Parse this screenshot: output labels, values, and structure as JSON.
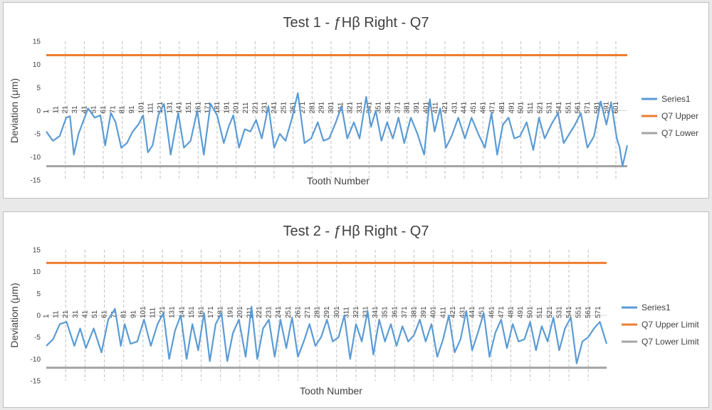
{
  "chart_data": [
    {
      "type": "line",
      "title": "Test 1 - ƒHβ Right - Q7",
      "xlabel": "Tooth Number",
      "ylabel": "Deviation (μm)",
      "ylim": [
        -15,
        15
      ],
      "yticks": [
        15,
        10,
        5,
        0,
        -5,
        -10,
        -15
      ],
      "xlim": [
        1,
        613
      ],
      "xticks": [
        "1",
        "11",
        "21",
        "31",
        "41",
        "51",
        "61",
        "71",
        "81",
        "91",
        "101",
        "111",
        "121",
        "131",
        "141",
        "151",
        "161",
        "171",
        "181",
        "191",
        "201",
        "211",
        "221",
        "231",
        "241",
        "251",
        "261",
        "271",
        "281",
        "291",
        "301",
        "311",
        "321",
        "331",
        "341",
        "351",
        "361",
        "371",
        "381",
        "391",
        "401",
        "411",
        "421",
        "431",
        "441",
        "451",
        "461",
        "471",
        "481",
        "491",
        "501",
        "511",
        "521",
        "531",
        "541",
        "551",
        "561",
        "571",
        "581",
        "591",
        "601"
      ],
      "legend": "right",
      "grid": "vertical dashed every 20 teeth",
      "series": [
        {
          "name": "Series1",
          "color": "#5b9bd5",
          "x": [
            1,
            8,
            15,
            22,
            26,
            30,
            35,
            45,
            52,
            58,
            63,
            69,
            74,
            80,
            86,
            92,
            98,
            103,
            108,
            113,
            119,
            125,
            132,
            140,
            146,
            153,
            160,
            167,
            174,
            181,
            188,
            193,
            198,
            204,
            210,
            216,
            222,
            228,
            235,
            241,
            247,
            253,
            260,
            266,
            273,
            280,
            287,
            293,
            299,
            306,
            312,
            318,
            325,
            331,
            338,
            343,
            348,
            354,
            360,
            366,
            372,
            378,
            385,
            392,
            399,
            405,
            410,
            416,
            422,
            428,
            435,
            442,
            449,
            456,
            463,
            470,
            476,
            482,
            488,
            494,
            500,
            507,
            514,
            520,
            526,
            533,
            540,
            546,
            552,
            558,
            564,
            571,
            578,
            585,
            591,
            596,
            602,
            605,
            608,
            613
          ],
          "values": [
            -4.5,
            -6.5,
            -5.5,
            -1.5,
            -1.2,
            -9.5,
            -5,
            0.5,
            -1.5,
            -1,
            -7.5,
            -0.5,
            -2.5,
            -8,
            -7,
            -4.5,
            -3,
            -1,
            -9,
            -7.5,
            -1,
            1.5,
            -9.5,
            -0.5,
            -8,
            -6.5,
            0,
            -9.5,
            1.5,
            -1,
            -7,
            -3.5,
            -1,
            -8,
            -4,
            -4.5,
            -2,
            -6,
            1,
            -8,
            -5,
            -6.5,
            -1.5,
            3.8,
            -7,
            -6,
            -2.5,
            -6.5,
            -6,
            -2.5,
            1,
            -6,
            -2.5,
            -6,
            3,
            -3.5,
            0,
            -6.5,
            -2.5,
            -6,
            -1.5,
            -7,
            -1.5,
            -5,
            -9.5,
            2.5,
            -4.5,
            0.5,
            -8,
            -5.5,
            -1.5,
            -6,
            -1.5,
            -5,
            -8,
            -0.5,
            -9.5,
            -3,
            -1.5,
            -6,
            -5.5,
            -2.5,
            -8.5,
            -1.5,
            -6,
            -3,
            -0.5,
            -7,
            -5,
            -3,
            -0.5,
            -8,
            -5.5,
            2,
            -3,
            1.8,
            -6,
            -8,
            -12,
            -7.5
          ]
        },
        {
          "name": "Q7 Upper",
          "color": "#ed7d31",
          "values": [
            12,
            12
          ]
        },
        {
          "name": "Q7 Lower",
          "color": "#a5a5a5",
          "values": [
            -12,
            -12
          ]
        }
      ]
    },
    {
      "type": "line",
      "title": "Test 2 - ƒHβ Right - Q7",
      "xlabel": "Tooth Number",
      "ylabel": "Deviation (μm)",
      "ylim": [
        -15,
        15
      ],
      "yticks": [
        15,
        10,
        5,
        0,
        -5,
        -10,
        -15
      ],
      "xlim": [
        1,
        580
      ],
      "xticks": [
        "1",
        "11",
        "21",
        "31",
        "41",
        "51",
        "61",
        "71",
        "81",
        "91",
        "101",
        "111",
        "121",
        "131",
        "141",
        "151",
        "161",
        "171",
        "181",
        "191",
        "201",
        "211",
        "221",
        "231",
        "241",
        "251",
        "261",
        "271",
        "281",
        "291",
        "301",
        "311",
        "321",
        "331",
        "341",
        "351",
        "361",
        "371",
        "381",
        "391",
        "401",
        "411",
        "421",
        "431",
        "441",
        "451",
        "461",
        "471",
        "481",
        "491",
        "501",
        "511",
        "521",
        "531",
        "541",
        "551",
        "561",
        "571"
      ],
      "legend": "right",
      "grid": "vertical dashed every 20 teeth",
      "series": [
        {
          "name": "Series1",
          "color": "#5b9bd5",
          "x": [
            1,
            8,
            15,
            22,
            30,
            36,
            42,
            50,
            58,
            65,
            72,
            78,
            82,
            88,
            95,
            102,
            109,
            116,
            122,
            128,
            134,
            140,
            146,
            152,
            158,
            164,
            170,
            176,
            182,
            188,
            194,
            200,
            207,
            213,
            219,
            225,
            231,
            237,
            243,
            249,
            255,
            261,
            267,
            273,
            279,
            285,
            291,
            297,
            303,
            309,
            315,
            321,
            327,
            333,
            339,
            345,
            351,
            357,
            363,
            369,
            375,
            381,
            387,
            393,
            399,
            405,
            411,
            417,
            423,
            429,
            435,
            441,
            447,
            453,
            459,
            465,
            471,
            477,
            483,
            489,
            495,
            501,
            507,
            513,
            519,
            525,
            531,
            537,
            543,
            549,
            555,
            561,
            567,
            573,
            580
          ],
          "values": [
            -7,
            -5.5,
            -2,
            -1.5,
            -7,
            -3,
            -7.5,
            -3,
            -8.5,
            -1,
            1.5,
            -7,
            -2,
            -6.5,
            -6,
            -1,
            -7,
            -2,
            0.5,
            -10,
            -3.5,
            0,
            -10,
            -2,
            -8,
            0.5,
            -10.5,
            -2,
            0.5,
            -10.5,
            -4,
            -1,
            -9.5,
            2,
            -10,
            -3,
            -1,
            -9.5,
            -1,
            -7.5,
            -0.5,
            -9.5,
            -6,
            -2,
            -7,
            -5,
            -1,
            -6,
            -5,
            0,
            -10,
            -2,
            -6,
            1,
            -9,
            -1,
            -6,
            -2,
            -7,
            -2.5,
            -6,
            -4.5,
            -1,
            -6,
            -2,
            -9.5,
            -5.5,
            0,
            -8.5,
            -5.5,
            1,
            -8,
            -4,
            0.5,
            -9.5,
            -4,
            -1,
            -7.5,
            -2,
            -6,
            -5.5,
            -1.5,
            -8,
            -2.5,
            -6,
            -0.5,
            -8,
            -3,
            -0.5,
            -11,
            -6,
            -5,
            -3,
            -1.5,
            -6.5
          ]
        },
        {
          "name": "Q7 Upper Limit",
          "color": "#ed7d31",
          "values": [
            12,
            12
          ]
        },
        {
          "name": "Q7 Lower Limit",
          "color": "#a5a5a5",
          "values": [
            -12,
            -12
          ]
        }
      ]
    }
  ]
}
